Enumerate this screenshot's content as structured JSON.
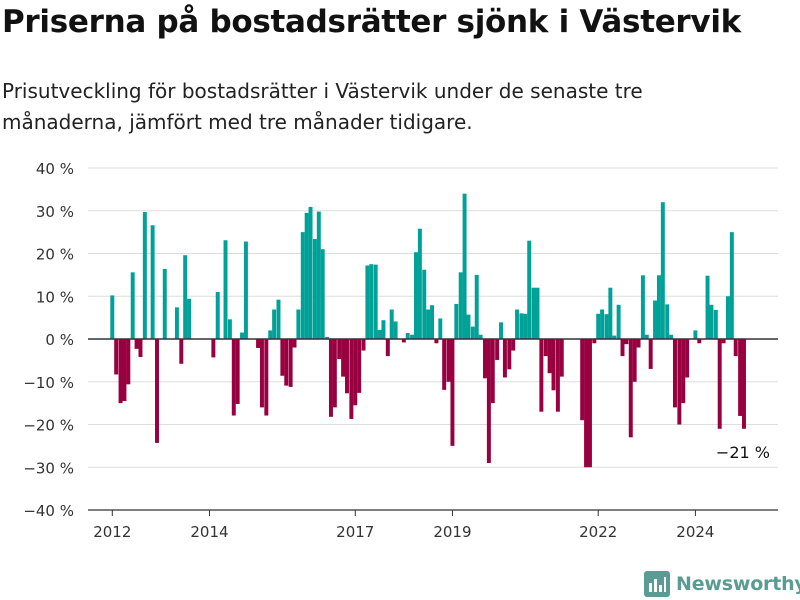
{
  "title": "Priserna på bostadsrätter sjönk i Västervik",
  "subtitle": "Prisutveckling för bostadsrätter i Västervik under de senaste tre månaderna, jämfört med tre månader tidigare.",
  "brand": "Newsworthy",
  "colors": {
    "positive": "#00a298",
    "negative": "#990040",
    "grid": "#dddddd",
    "axis": "#333333",
    "brand": "#5a9c94"
  },
  "chart_data": {
    "type": "bar",
    "ylim": [
      -40,
      40
    ],
    "y_ticks": [
      40,
      30,
      20,
      10,
      0,
      -10,
      -20,
      -30,
      -40
    ],
    "y_tick_labels": [
      "40 %",
      "30 %",
      "20 %",
      "10 %",
      "0 %",
      "−10 %",
      "−20 %",
      "−30 %",
      "−40 %"
    ],
    "x_ticks": [
      {
        "label": "2012",
        "x": 2012.0
      },
      {
        "label": "2014",
        "x": 2014.0
      },
      {
        "label": "2017",
        "x": 2017.0
      },
      {
        "label": "2019",
        "x": 2019.0
      },
      {
        "label": "2022",
        "x": 2022.0
      },
      {
        "label": "2024",
        "x": 2024.0
      }
    ],
    "x_range": [
      2011.5,
      2025.7
    ],
    "bar_width_years": 0.0833,
    "last_label": "−21 %",
    "bars": [
      {
        "x": 2012.0,
        "value": 10.2
      },
      {
        "x": 2012.08,
        "value": -8.3
      },
      {
        "x": 2012.17,
        "value": -15.0
      },
      {
        "x": 2012.25,
        "value": -14.5
      },
      {
        "x": 2012.33,
        "value": -10.6
      },
      {
        "x": 2012.42,
        "value": 15.6
      },
      {
        "x": 2012.5,
        "value": -2.3
      },
      {
        "x": 2012.58,
        "value": -4.2
      },
      {
        "x": 2012.67,
        "value": 29.7
      },
      {
        "x": 2012.83,
        "value": 26.6
      },
      {
        "x": 2012.92,
        "value": -24.3
      },
      {
        "x": 2013.08,
        "value": 16.4
      },
      {
        "x": 2013.33,
        "value": 7.4
      },
      {
        "x": 2013.42,
        "value": -5.8
      },
      {
        "x": 2013.5,
        "value": 19.6
      },
      {
        "x": 2013.58,
        "value": 9.4
      },
      {
        "x": 2014.08,
        "value": -4.3
      },
      {
        "x": 2014.17,
        "value": 11.0
      },
      {
        "x": 2014.33,
        "value": 23.1
      },
      {
        "x": 2014.42,
        "value": 4.6
      },
      {
        "x": 2014.5,
        "value": -17.9
      },
      {
        "x": 2014.58,
        "value": -15.2
      },
      {
        "x": 2014.67,
        "value": 1.5
      },
      {
        "x": 2014.75,
        "value": 22.8
      },
      {
        "x": 2015.0,
        "value": -2.1
      },
      {
        "x": 2015.08,
        "value": -16.0
      },
      {
        "x": 2015.17,
        "value": -17.9
      },
      {
        "x": 2015.25,
        "value": 2.0
      },
      {
        "x": 2015.33,
        "value": 6.9
      },
      {
        "x": 2015.42,
        "value": 9.2
      },
      {
        "x": 2015.5,
        "value": -8.6
      },
      {
        "x": 2015.58,
        "value": -10.9
      },
      {
        "x": 2015.67,
        "value": -11.2
      },
      {
        "x": 2015.75,
        "value": -2.0
      },
      {
        "x": 2015.83,
        "value": 6.9
      },
      {
        "x": 2015.92,
        "value": 25.0
      },
      {
        "x": 2016.0,
        "value": 29.5
      },
      {
        "x": 2016.08,
        "value": 30.9
      },
      {
        "x": 2016.17,
        "value": 23.4
      },
      {
        "x": 2016.25,
        "value": 29.8
      },
      {
        "x": 2016.33,
        "value": 21.0
      },
      {
        "x": 2016.42,
        "value": 0.5
      },
      {
        "x": 2016.5,
        "value": -18.2
      },
      {
        "x": 2016.58,
        "value": -16.0
      },
      {
        "x": 2016.67,
        "value": -4.7
      },
      {
        "x": 2016.75,
        "value": -8.8
      },
      {
        "x": 2016.83,
        "value": -12.7
      },
      {
        "x": 2016.92,
        "value": -18.7
      },
      {
        "x": 2017.0,
        "value": -15.5
      },
      {
        "x": 2017.08,
        "value": -12.6
      },
      {
        "x": 2017.17,
        "value": -2.7
      },
      {
        "x": 2017.25,
        "value": 17.2
      },
      {
        "x": 2017.33,
        "value": 17.5
      },
      {
        "x": 2017.42,
        "value": 17.4
      },
      {
        "x": 2017.5,
        "value": 2.1
      },
      {
        "x": 2017.58,
        "value": 4.4
      },
      {
        "x": 2017.67,
        "value": -4.0
      },
      {
        "x": 2017.75,
        "value": 6.9
      },
      {
        "x": 2017.83,
        "value": 4.1
      },
      {
        "x": 2018.0,
        "value": -0.8
      },
      {
        "x": 2018.08,
        "value": 1.4
      },
      {
        "x": 2018.17,
        "value": 1.0
      },
      {
        "x": 2018.25,
        "value": 20.3
      },
      {
        "x": 2018.33,
        "value": 25.8
      },
      {
        "x": 2018.42,
        "value": 16.2
      },
      {
        "x": 2018.5,
        "value": 6.9
      },
      {
        "x": 2018.58,
        "value": 7.9
      },
      {
        "x": 2018.67,
        "value": -1.0
      },
      {
        "x": 2018.75,
        "value": 4.8
      },
      {
        "x": 2018.83,
        "value": -11.9
      },
      {
        "x": 2018.92,
        "value": -10.0
      },
      {
        "x": 2019.0,
        "value": -25.0
      },
      {
        "x": 2019.08,
        "value": 8.2
      },
      {
        "x": 2019.17,
        "value": 15.6
      },
      {
        "x": 2019.25,
        "value": 34.0
      },
      {
        "x": 2019.33,
        "value": 5.7
      },
      {
        "x": 2019.42,
        "value": 2.9
      },
      {
        "x": 2019.5,
        "value": 15.0
      },
      {
        "x": 2019.58,
        "value": 1.0
      },
      {
        "x": 2019.67,
        "value": -9.2
      },
      {
        "x": 2019.75,
        "value": -29.0
      },
      {
        "x": 2019.83,
        "value": -15.0
      },
      {
        "x": 2019.92,
        "value": -4.9
      },
      {
        "x": 2020.0,
        "value": 3.9
      },
      {
        "x": 2020.08,
        "value": -9.0
      },
      {
        "x": 2020.17,
        "value": -7.1
      },
      {
        "x": 2020.25,
        "value": -2.7
      },
      {
        "x": 2020.33,
        "value": 6.9
      },
      {
        "x": 2020.42,
        "value": 6.0
      },
      {
        "x": 2020.5,
        "value": 5.9
      },
      {
        "x": 2020.58,
        "value": 23.0
      },
      {
        "x": 2020.67,
        "value": 12.0
      },
      {
        "x": 2020.75,
        "value": 12.0
      },
      {
        "x": 2020.83,
        "value": -17.0
      },
      {
        "x": 2020.92,
        "value": -4.0
      },
      {
        "x": 2021.0,
        "value": -8.0
      },
      {
        "x": 2021.08,
        "value": -12.0
      },
      {
        "x": 2021.17,
        "value": -17.0
      },
      {
        "x": 2021.25,
        "value": -8.8
      },
      {
        "x": 2021.67,
        "value": -19.0
      },
      {
        "x": 2021.75,
        "value": -30.0
      },
      {
        "x": 2021.83,
        "value": -30.0
      },
      {
        "x": 2021.92,
        "value": -1.0
      },
      {
        "x": 2022.0,
        "value": 5.9
      },
      {
        "x": 2022.08,
        "value": 6.9
      },
      {
        "x": 2022.17,
        "value": 5.8
      },
      {
        "x": 2022.25,
        "value": 12.0
      },
      {
        "x": 2022.33,
        "value": 0.8
      },
      {
        "x": 2022.42,
        "value": 8.0
      },
      {
        "x": 2022.5,
        "value": -4.0
      },
      {
        "x": 2022.58,
        "value": -1.2
      },
      {
        "x": 2022.67,
        "value": -23.0
      },
      {
        "x": 2022.75,
        "value": -10.0
      },
      {
        "x": 2022.83,
        "value": -2.0
      },
      {
        "x": 2022.92,
        "value": 14.9
      },
      {
        "x": 2023.0,
        "value": 1.0
      },
      {
        "x": 2023.08,
        "value": -7.0
      },
      {
        "x": 2023.17,
        "value": 9.0
      },
      {
        "x": 2023.25,
        "value": 14.9
      },
      {
        "x": 2023.33,
        "value": 32.0
      },
      {
        "x": 2023.42,
        "value": 8.1
      },
      {
        "x": 2023.5,
        "value": 1.0
      },
      {
        "x": 2023.58,
        "value": -16.0
      },
      {
        "x": 2023.67,
        "value": -20.0
      },
      {
        "x": 2023.75,
        "value": -15.0
      },
      {
        "x": 2023.83,
        "value": -9.0
      },
      {
        "x": 2024.0,
        "value": 2.0
      },
      {
        "x": 2024.08,
        "value": -1.0
      },
      {
        "x": 2024.25,
        "value": 14.8
      },
      {
        "x": 2024.33,
        "value": 8.0
      },
      {
        "x": 2024.42,
        "value": 6.8
      },
      {
        "x": 2024.5,
        "value": -21.0
      },
      {
        "x": 2024.58,
        "value": -1.0
      },
      {
        "x": 2024.67,
        "value": 10.0
      },
      {
        "x": 2024.75,
        "value": 25.0
      },
      {
        "x": 2024.83,
        "value": -4.0
      },
      {
        "x": 2024.92,
        "value": -18.0
      },
      {
        "x": 2025.0,
        "value": -21.0
      }
    ]
  }
}
